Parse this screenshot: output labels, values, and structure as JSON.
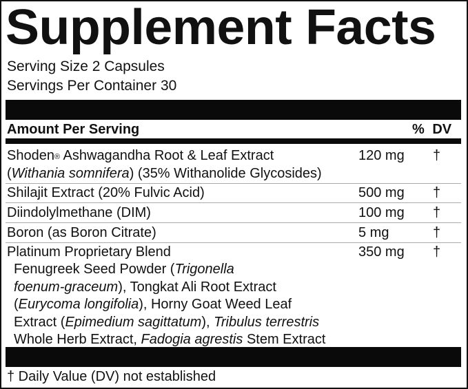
{
  "title": "Supplement Facts",
  "serving_size": "Serving Size 2 Capsules",
  "servings_per_container": "Servings Per Container 30",
  "header": {
    "amount_per_serving": "Amount Per Serving",
    "dv": "% DV"
  },
  "rows": [
    {
      "name": "Shoden",
      "reg": "®",
      "name_rest": " Ashwagandha Root & Leaf Extract",
      "line2_a": "(",
      "line2_italic": "Withania somnifera",
      "line2_b": ") (35% Withanolide Glycosides)",
      "amount": "120 mg",
      "dv": "†"
    },
    {
      "name": "Shilajit Extract (20% Fulvic Acid)",
      "amount": "500 mg",
      "dv": "†"
    },
    {
      "name": "Diindolylmethane (DIM)",
      "amount": "100 mg",
      "dv": "†"
    },
    {
      "name": "Boron (as Boron Citrate)",
      "amount": "5 mg",
      "dv": "†"
    },
    {
      "name": "Platinum Proprietary Blend",
      "amount": "350 mg",
      "dv": "†",
      "blend": [
        [
          {
            "t": "Fenugreek Seed Powder (",
            "i": false
          },
          {
            "t": "Trigonella",
            "i": true
          }
        ],
        [
          {
            "t": "foenum-graceum",
            "i": true
          },
          {
            "t": "), Tongkat Ali Root Extract",
            "i": false
          }
        ],
        [
          {
            "t": "(",
            "i": false
          },
          {
            "t": "Eurycoma longifolia",
            "i": true
          },
          {
            "t": "), Horny Goat Weed Leaf",
            "i": false
          }
        ],
        [
          {
            "t": "Extract (",
            "i": false
          },
          {
            "t": "Epimedium sagittatum",
            "i": true
          },
          {
            "t": "), ",
            "i": false
          },
          {
            "t": "Tribulus terrestris",
            "i": true
          }
        ],
        [
          {
            "t": "Whole Herb Extract, ",
            "i": false
          },
          {
            "t": "Fadogia agrestis",
            "i": true
          },
          {
            "t": " Stem Extract",
            "i": false
          }
        ]
      ]
    }
  ],
  "footnote": "† Daily Value (DV) not established"
}
